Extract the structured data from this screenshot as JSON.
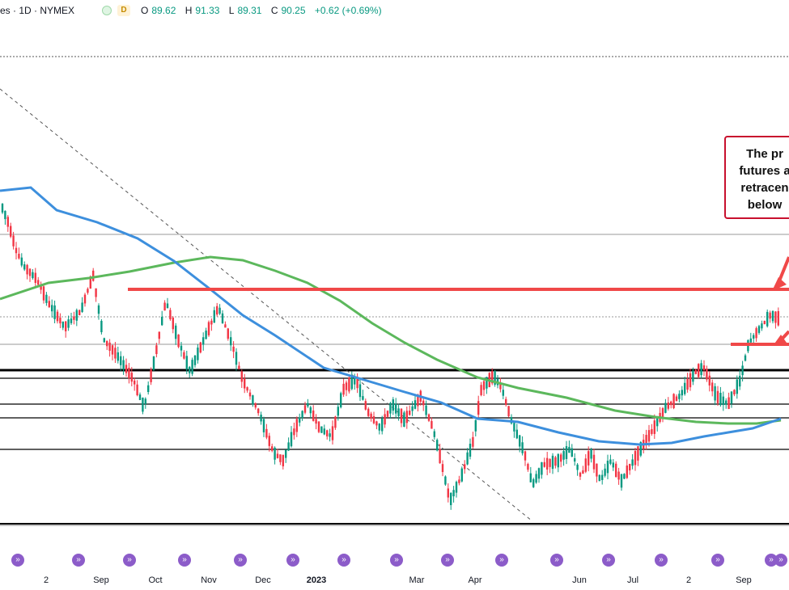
{
  "header": {
    "symbol_line": "es · 1D · NYMEX",
    "status_badge": "D",
    "ohlc": [
      {
        "label": "O",
        "value": "89.62"
      },
      {
        "label": "H",
        "value": "91.33"
      },
      {
        "label": "L",
        "value": "89.31"
      },
      {
        "label": "C",
        "value": "90.25"
      },
      {
        "label": "",
        "value": "+0.62 (+0.69%)"
      }
    ]
  },
  "callout": {
    "lines": [
      "The pr",
      "futures a",
      "retracen",
      "below"
    ],
    "border_color": "#c8102e"
  },
  "colors": {
    "up_candle": "#089981",
    "down_candle": "#f23645",
    "ma_blue": "#3d8fdd",
    "ma_green": "#5cb85c",
    "resistance_red": "#f04848",
    "event_icon": "#8c5cc9"
  },
  "x_axis": {
    "labels": [
      {
        "text": "2",
        "year": false
      },
      {
        "text": "Sep",
        "year": false
      },
      {
        "text": "Oct",
        "year": false
      },
      {
        "text": "Nov",
        "year": false
      },
      {
        "text": "Dec",
        "year": false
      },
      {
        "text": "2023",
        "year": true
      },
      {
        "text": "Mar",
        "year": false
      },
      {
        "text": "Apr",
        "year": false
      },
      {
        "text": "Jun",
        "year": false
      },
      {
        "text": "Jul",
        "year": false
      },
      {
        "text": "2",
        "year": false
      },
      {
        "text": "Sep",
        "year": false
      }
    ],
    "event_icon": "economic-event-icon"
  },
  "chart_data": {
    "type": "candlestick",
    "symbol_exchange": "NYMEX",
    "timeframe": "1D",
    "grid": false,
    "series": [
      {
        "name": "blue moving average"
      },
      {
        "name": "green moving average"
      }
    ],
    "annotations": [
      "red horizontal resistance line",
      "red arrows pointing left",
      "dashed descending trend line",
      "black horizontal retracement levels"
    ]
  }
}
